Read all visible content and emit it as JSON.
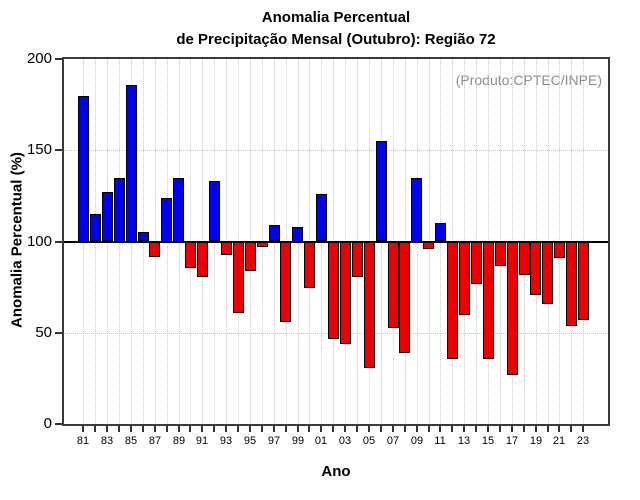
{
  "title": {
    "line1": "Anomalia Percentual",
    "line2": "de Precipitação Mensal (Outubro): Região 72"
  },
  "annotation": "(Produto:CPTEC/INPE)",
  "axes": {
    "x_title": "Ano",
    "y_title": "Anomalia Percentual (%)"
  },
  "chart_data": {
    "type": "bar",
    "title": "Anomalia Percentual de Precipitação Mensal (Outubro): Região 72",
    "xlabel": "Ano",
    "ylabel": "Anomalia Percentual (%)",
    "ylim": [
      0,
      200
    ],
    "yticks": [
      0,
      50,
      100,
      150,
      200
    ],
    "baseline": 100,
    "grid_y": [
      50,
      150
    ],
    "grid": "dotted vertical line at every year; dotted horizontal at 50 and 150; solid black line at 100",
    "legend_position": "none",
    "years": [
      1981,
      1982,
      1983,
      1984,
      1985,
      1986,
      1987,
      1988,
      1989,
      1990,
      1991,
      1992,
      1993,
      1994,
      1995,
      1996,
      1997,
      1998,
      1999,
      2000,
      2001,
      2002,
      2003,
      2004,
      2005,
      2006,
      2007,
      2008,
      2009,
      2010,
      2011,
      2012,
      2013,
      2014,
      2015,
      2016,
      2017,
      2018,
      2019,
      2020,
      2021,
      2022,
      2023
    ],
    "values": [
      180,
      115,
      127,
      135,
      186,
      105,
      92,
      124,
      135,
      86,
      81,
      133,
      93,
      61,
      84,
      97,
      109,
      56,
      108,
      75,
      126,
      47,
      44,
      81,
      31,
      155,
      53,
      39,
      135,
      96,
      110,
      36,
      60,
      77,
      36,
      87,
      27,
      82,
      71,
      66,
      91,
      54,
      57
    ],
    "x_tick_labels": [
      "81",
      "83",
      "85",
      "87",
      "89",
      "91",
      "93",
      "95",
      "97",
      "99",
      "01",
      "03",
      "05",
      "07",
      "09",
      "11",
      "13",
      "15",
      "17",
      "19",
      "21",
      "23"
    ],
    "color_above_baseline": "#0000f2",
    "color_below_baseline": "#ee0000",
    "bar_edge_color": "#000000",
    "grid_color": "#c9c9c9"
  }
}
